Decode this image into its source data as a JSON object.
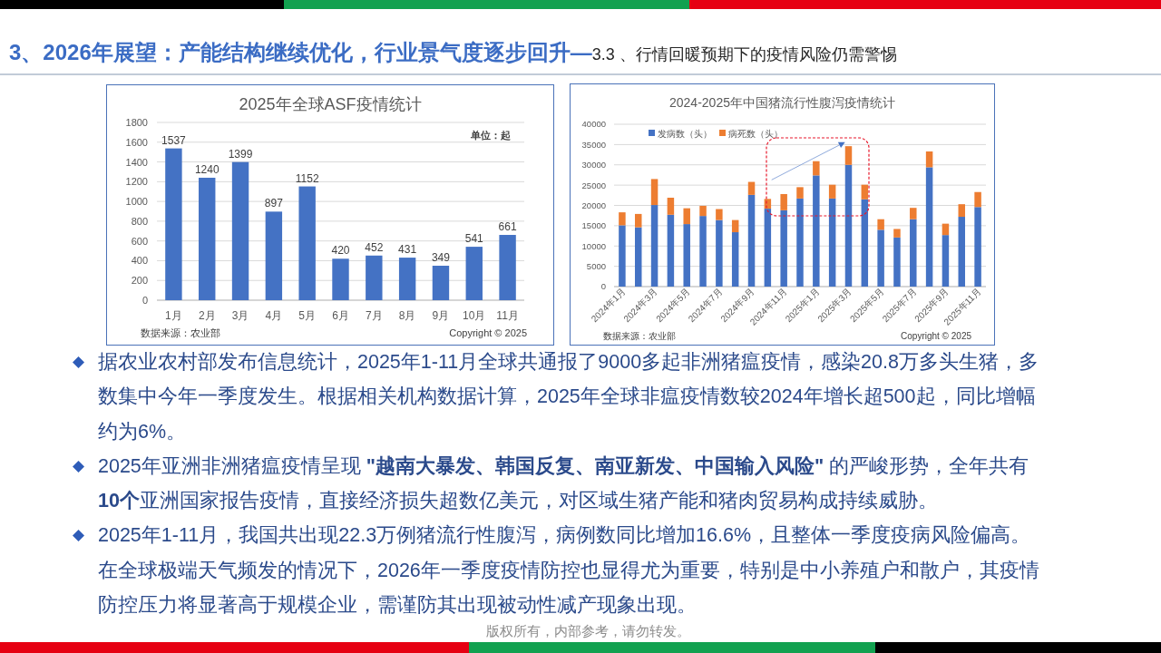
{
  "chart_data": [
    {
      "type": "other",
      "title": "3、2026年展望：产能结构继续优化，行业景气度逐步回升—",
      "subtitle": "3.3 、行情回暖预期下的疫情风险仍需警惕"
    },
    {
      "type": "bar",
      "title": "2025年全球ASF疫情统计",
      "categories": [
        "1月",
        "2月",
        "3月",
        "4月",
        "5月",
        "6月",
        "7月",
        "8月",
        "9月",
        "10月",
        "11月"
      ],
      "values": [
        1537,
        1240,
        1399,
        897,
        1152,
        420,
        452,
        431,
        349,
        541,
        661
      ],
      "color": "#4472c4",
      "ylim": [
        0,
        1800
      ],
      "yticks": [
        0,
        200,
        400,
        600,
        800,
        1000,
        1200,
        1400,
        1600,
        1800
      ],
      "grid": "y",
      "data_labels": true,
      "annotations": [
        "单位：起",
        "数据来源：农业部",
        "Copyright © 2025"
      ]
    },
    {
      "type": "bar",
      "stacked": true,
      "title": "2024-2025年中国猪流行性腹泻疫情统计",
      "categories": [
        "2024年1月",
        null,
        "2024年3月",
        null,
        "2024年5月",
        null,
        "2024年7月",
        null,
        "2024年9月",
        null,
        "2024年11月",
        null,
        "2025年1月",
        null,
        "2025年3月",
        null,
        "2025年5月",
        null,
        "2025年7月",
        null,
        "2025年9月",
        null,
        "2025年11月"
      ],
      "series": [
        {
          "name": "发病数（头）",
          "color": "#4472c4",
          "values": [
            15100,
            14600,
            20100,
            17700,
            15400,
            17400,
            16400,
            13400,
            22600,
            19200,
            18800,
            21700,
            27400,
            21700,
            30000,
            21500,
            14000,
            12100,
            16600,
            29400,
            12700,
            17200,
            19600
          ]
        },
        {
          "name": "病死数（头）",
          "color": "#ed7d31",
          "values": [
            3200,
            3300,
            6400,
            4200,
            3900,
            2500,
            2700,
            3000,
            3200,
            2400,
            4000,
            2800,
            3500,
            3400,
            4600,
            3600,
            2600,
            2100,
            2800,
            3900,
            2800,
            3100,
            3700
          ]
        }
      ],
      "ylim": [
        0,
        40000
      ],
      "yticks": [
        0,
        5000,
        10000,
        15000,
        20000,
        25000,
        30000,
        35000,
        40000
      ],
      "grid": "y",
      "legend": "top left",
      "annotations": [
        "数据来源：农业部",
        "Copyright © 2025"
      ]
    },
    {
      "type": "other",
      "annotations": [
        "据农业农村部发布信息统计，2025年1-11月全球共通报了9000多起非洲猪瘟疫情，感染20.8万多头生猪，多数集中今年一季度发生。根据相关机构数据计算，2025年全球非瘟疫情数较2024年增长超500起，同比增幅约为6%。",
        "2025年亚洲非洲猪瘟疫情呈现 **\"越南大暴发、韩国反复、南亚新发、中国输入风险\"** 的严峻形势，全年共有**10个**亚洲国家报告疫情，直接经济损失超数亿美元，对区域生猪产能和猪肉贸易构成持续威胁。",
        "2025年1-11月，我国共出现22.3万例猪流行性腹泻，病例数同比增加16.6%，且整体一季度疫病风险偏高。在全球极端天气频发的情况下，2026年一季度疫情防控也显得尤为重要，特别是中小养殖户和散户，其疫情防控压力将显著高于规模企业，需谨防其出现被动性减产现象出现。",
        "版权所有，内部参考，请勿转发。"
      ]
    }
  ]
}
